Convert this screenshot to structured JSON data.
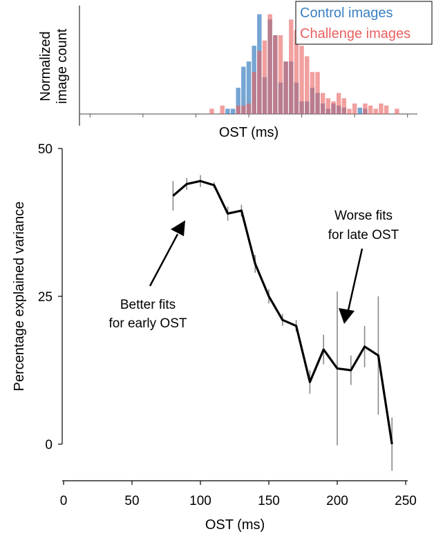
{
  "histogram": {
    "ylabel_line1": "Normalized",
    "ylabel_line2": "image count",
    "xlabel": "OST (ms)",
    "legend": [
      {
        "label": "Control images",
        "color": "#3a7fc1"
      },
      {
        "label": "Challenge images",
        "color": "#e8605f"
      }
    ]
  },
  "annotations": {
    "early_line1": "Better fits",
    "early_line2": "for early OST",
    "late_line1": "Worse fits",
    "late_line2": "for late OST"
  },
  "chart_data": [
    {
      "type": "bar",
      "title": "",
      "xlabel": "OST (ms)",
      "ylabel": "Normalized image count",
      "xlim": [
        -60,
        260
      ],
      "bin_width": 5,
      "series": [
        {
          "name": "Control images",
          "color": "#3a7fc1",
          "bins": [
            [
              80,
              0.05
            ],
            [
              85,
              0.05
            ],
            [
              90,
              0.25
            ],
            [
              95,
              0.45
            ],
            [
              100,
              0.5
            ],
            [
              105,
              0.65
            ],
            [
              110,
              0.95
            ],
            [
              115,
              0.35
            ],
            [
              120,
              0.9
            ],
            [
              125,
              0.75
            ],
            [
              130,
              0.3
            ],
            [
              135,
              0.5
            ],
            [
              140,
              0.5
            ],
            [
              145,
              0.3
            ],
            [
              150,
              0.12
            ],
            [
              155,
              0.12
            ],
            [
              160,
              0.25
            ],
            [
              165,
              0.2
            ],
            [
              170,
              0.1
            ],
            [
              175,
              0.05
            ],
            [
              180,
              0.1
            ],
            [
              185,
              0.08
            ],
            [
              190,
              0.06
            ],
            [
              205,
              0.06
            ],
            [
              210,
              0.05
            ]
          ]
        },
        {
          "name": "Challenge images",
          "color": "#e8605f",
          "bins": [
            [
              65,
              0.05
            ],
            [
              75,
              0.08
            ],
            [
              90,
              0.08
            ],
            [
              95,
              0.08
            ],
            [
              100,
              0.1
            ],
            [
              105,
              0.4
            ],
            [
              110,
              0.6
            ],
            [
              115,
              0.7
            ],
            [
              120,
              0.95
            ],
            [
              125,
              0.75
            ],
            [
              130,
              0.75
            ],
            [
              135,
              0.5
            ],
            [
              140,
              0.9
            ],
            [
              145,
              0.8
            ],
            [
              150,
              0.65
            ],
            [
              155,
              0.55
            ],
            [
              160,
              0.4
            ],
            [
              165,
              0.4
            ],
            [
              170,
              0.2
            ],
            [
              175,
              0.15
            ],
            [
              180,
              0.12
            ],
            [
              185,
              0.2
            ],
            [
              190,
              0.15
            ],
            [
              195,
              0.05
            ],
            [
              200,
              0.1
            ],
            [
              210,
              0.1
            ],
            [
              215,
              0.08
            ],
            [
              220,
              0.05
            ],
            [
              225,
              0.1
            ],
            [
              230,
              0.08
            ],
            [
              240,
              0.05
            ]
          ]
        }
      ]
    },
    {
      "type": "line",
      "title": "",
      "xlabel": "OST (ms)",
      "ylabel": "Percentage explained variance",
      "xlim": [
        0,
        250
      ],
      "ylim": [
        0,
        50
      ],
      "xticks": [
        0,
        50,
        100,
        150,
        200,
        250
      ],
      "yticks": [
        0,
        25,
        50
      ],
      "series": [
        {
          "name": "Explained variance",
          "color": "#000000",
          "x": [
            80,
            90,
            100,
            110,
            120,
            130,
            140,
            150,
            160,
            170,
            180,
            190,
            200,
            210,
            220,
            230,
            240
          ],
          "y": [
            42,
            44,
            44.5,
            43.8,
            39,
            39.5,
            30.5,
            25,
            21,
            20,
            10.5,
            16,
            12.8,
            12.5,
            16.5,
            15,
            0
          ],
          "error": [
            2.5,
            1,
            1,
            0.5,
            1.2,
            1,
            1.5,
            1.2,
            1,
            1,
            2,
            2.5,
            13,
            2.5,
            3.5,
            10,
            4.5
          ]
        }
      ]
    }
  ]
}
